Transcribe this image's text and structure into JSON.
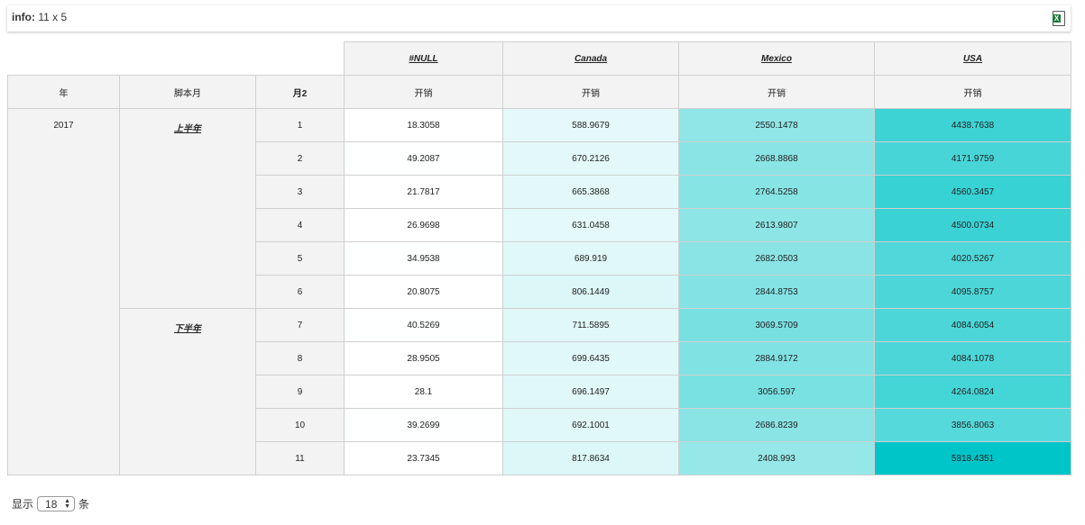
{
  "info": {
    "label": "info:",
    "value": "11 x 5"
  },
  "columns": {
    "countries": [
      "#NULL",
      "Canada",
      "Mexico",
      "USA"
    ],
    "row_headers": [
      "年",
      "脚本月",
      "月2"
    ],
    "measure": "开销"
  },
  "year": "2017",
  "groups": [
    {
      "label": "上半年",
      "rows": 6
    },
    {
      "label": "下半年",
      "rows": 5
    }
  ],
  "rows": [
    {
      "m": "1",
      "v": [
        "18.3058",
        "588.9679",
        "2550.1478",
        "4438.7638"
      ]
    },
    {
      "m": "2",
      "v": [
        "49.2087",
        "670.2126",
        "2668.8868",
        "4171.9759"
      ]
    },
    {
      "m": "3",
      "v": [
        "21.7817",
        "665.3868",
        "2764.5258",
        "4560.3457"
      ]
    },
    {
      "m": "4",
      "v": [
        "26.9698",
        "631.0458",
        "2613.9807",
        "4500.0734"
      ]
    },
    {
      "m": "5",
      "v": [
        "34.9538",
        "689.919",
        "2682.0503",
        "4020.5267"
      ]
    },
    {
      "m": "6",
      "v": [
        "20.8075",
        "806.1449",
        "2844.8753",
        "4095.8757"
      ]
    },
    {
      "m": "7",
      "v": [
        "40.5269",
        "711.5895",
        "3069.5709",
        "4084.6054"
      ]
    },
    {
      "m": "8",
      "v": [
        "28.9505",
        "699.6435",
        "2884.9172",
        "4084.1078"
      ]
    },
    {
      "m": "9",
      "v": [
        "28.1",
        "696.1497",
        "3056.597",
        "4264.0824"
      ]
    },
    {
      "m": "10",
      "v": [
        "39.2699",
        "692.1001",
        "2686.8239",
        "3856.8063"
      ]
    },
    {
      "m": "11",
      "v": [
        "23.7345",
        "817.8634",
        "2408.993",
        "5818.4351"
      ]
    }
  ],
  "heat": {
    "low": "#ffffff",
    "high": "#00c5c8"
  },
  "footer": {
    "show": "显示",
    "page_size": "18",
    "unit": "条"
  }
}
